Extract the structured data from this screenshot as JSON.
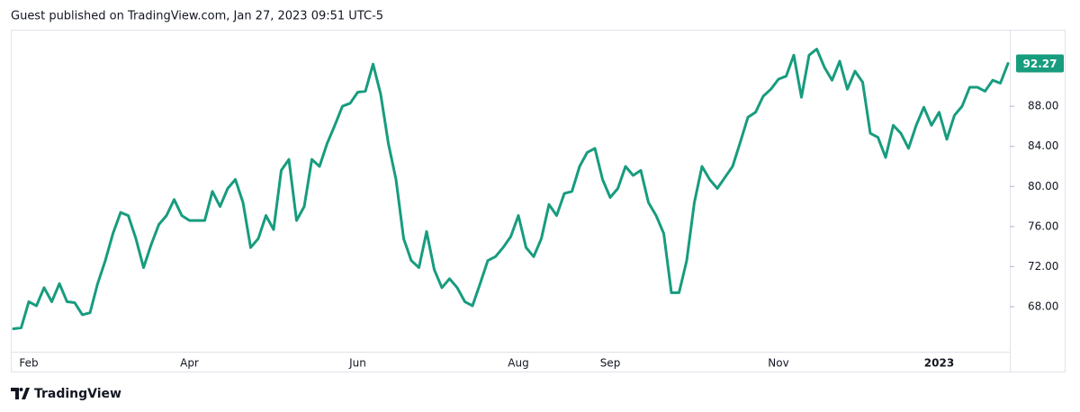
{
  "header": "Guest published on TradingView.com, Jan 27, 2023 09:51 UTC-5",
  "footer": "TradingView",
  "chart_data": {
    "type": "line",
    "color": "#179c7e",
    "categories": [
      null,
      null,
      "Feb",
      null,
      null,
      null,
      null,
      null,
      null,
      null,
      null,
      null,
      null,
      null,
      null,
      null,
      null,
      null,
      null,
      null,
      null,
      null,
      null,
      "Apr",
      null,
      null,
      null,
      null,
      null,
      null,
      null,
      null,
      null,
      null,
      null,
      null,
      null,
      null,
      null,
      null,
      null,
      null,
      null,
      null,
      null,
      "Jun",
      null,
      null,
      null,
      null,
      null,
      null,
      null,
      null,
      null,
      null,
      null,
      null,
      null,
      null,
      null,
      null,
      null,
      null,
      null,
      null,
      "Aug",
      null,
      null,
      null,
      null,
      null,
      null,
      null,
      null,
      null,
      null,
      null,
      "Sep",
      null,
      null,
      null,
      null,
      null,
      null,
      null,
      null,
      null,
      null,
      null,
      null,
      null,
      null,
      null,
      null,
      null,
      null,
      null,
      null,
      null,
      "Nov",
      null,
      null,
      null,
      null,
      null,
      null,
      null,
      null,
      null,
      null,
      null,
      null,
      null,
      null,
      null,
      null,
      null,
      null,
      null,
      null,
      "2023",
      null,
      null,
      null,
      null,
      null,
      null,
      null,
      null,
      null
    ],
    "values": [
      65.8,
      65.9,
      68.5,
      68.1,
      69.9,
      68.5,
      70.3,
      68.5,
      68.4,
      67.2,
      67.4,
      70.3,
      72.6,
      75.3,
      77.4,
      77.1,
      74.8,
      71.9,
      74.2,
      76.2,
      77.1,
      78.7,
      77.1,
      76.6,
      76.6,
      76.6,
      79.5,
      78.0,
      79.8,
      80.7,
      78.4,
      73.9,
      74.8,
      77.1,
      75.7,
      81.6,
      82.7,
      76.6,
      78.0,
      82.7,
      82.0,
      84.3,
      86.1,
      88.0,
      88.3,
      89.4,
      89.5,
      92.2,
      89.2,
      84.3,
      80.7,
      74.8,
      72.6,
      71.9,
      75.5,
      71.7,
      69.9,
      70.8,
      69.9,
      68.5,
      68.1,
      70.3,
      72.6,
      73.0,
      73.9,
      75.0,
      77.1,
      73.9,
      73.0,
      74.8,
      78.2,
      77.1,
      79.3,
      79.5,
      82.0,
      83.4,
      83.8,
      80.7,
      78.9,
      79.8,
      82.0,
      81.1,
      81.6,
      78.4,
      77.1,
      75.3,
      69.4,
      69.4,
      72.6,
      78.4,
      82.0,
      80.7,
      79.8,
      80.9,
      82.0,
      84.4,
      86.9,
      87.4,
      89.0,
      89.7,
      90.7,
      91.0,
      93.1,
      88.9,
      93.1,
      93.7,
      91.9,
      90.6,
      92.5,
      89.7,
      91.5,
      90.4,
      85.3,
      84.9,
      82.9,
      86.1,
      85.3,
      83.8,
      86.1,
      87.9,
      86.1,
      87.4,
      84.7,
      87.1,
      88.0,
      89.9,
      89.9,
      89.5,
      90.6,
      90.3,
      92.27
    ],
    "last_price": 92.27,
    "ylim": [
      63.6,
      95.64
    ],
    "yticks": [
      {
        "value": 68,
        "label": "68.00"
      },
      {
        "value": 72,
        "label": "72.00"
      },
      {
        "value": 76,
        "label": "76.00"
      },
      {
        "value": 80,
        "label": "80.00"
      },
      {
        "value": 84,
        "label": "84.00"
      },
      {
        "value": 88,
        "label": "88.00"
      }
    ],
    "grid": false
  }
}
